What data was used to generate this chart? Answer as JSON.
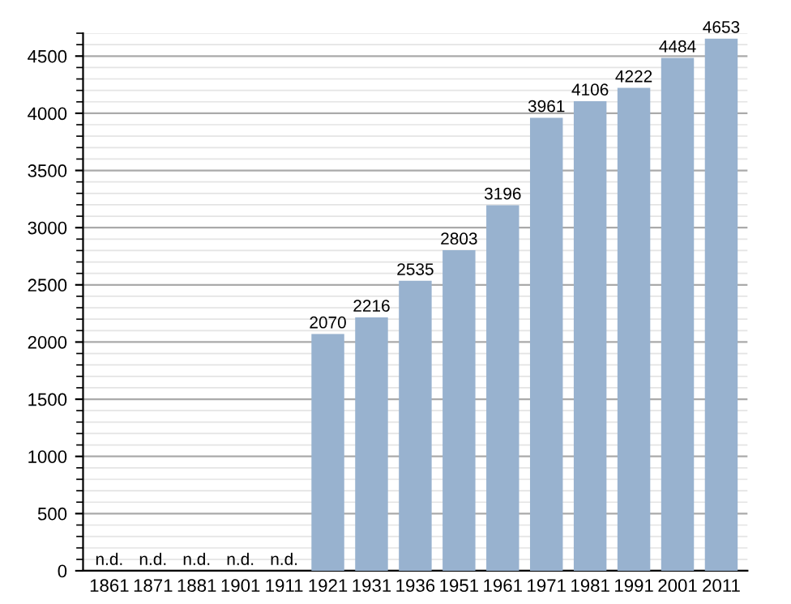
{
  "chart_data": {
    "type": "bar",
    "categories": [
      "1861",
      "1871",
      "1881",
      "1901",
      "1911",
      "1921",
      "1931",
      "1936",
      "1951",
      "1961",
      "1971",
      "1981",
      "1991",
      "2001",
      "2011"
    ],
    "values": [
      null,
      null,
      null,
      null,
      null,
      2070,
      2216,
      2535,
      2803,
      3196,
      3961,
      4106,
      4222,
      4484,
      4653
    ],
    "value_labels": [
      "n.d.",
      "n.d.",
      "n.d.",
      "n.d.",
      "n.d.",
      "2070",
      "2216",
      "2535",
      "2803",
      "3196",
      "3961",
      "4106",
      "4222",
      "4484",
      "4653"
    ],
    "color": "#98b2cf",
    "ylim": [
      0,
      4700
    ],
    "yticks": [
      0,
      500,
      1000,
      1500,
      2000,
      2500,
      3000,
      3500,
      4000,
      4500
    ],
    "grid": "y"
  }
}
